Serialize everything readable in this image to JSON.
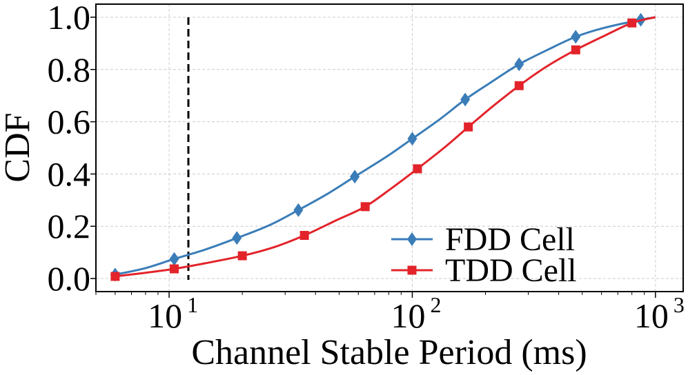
{
  "chart_data": {
    "type": "line",
    "xscale": "log",
    "xlabel": "Channel Stable Period (ms)",
    "ylabel": "CDF",
    "xlim": [
      5,
      1300
    ],
    "ylim": [
      -0.05,
      1.05
    ],
    "grid": true,
    "xticks": [
      {
        "base": "10",
        "exp": "1",
        "value": 10
      },
      {
        "base": "10",
        "exp": "2",
        "value": 100
      },
      {
        "base": "10",
        "exp": "3",
        "value": 1000
      }
    ],
    "yticks": [
      "0.0",
      "0.2",
      "0.4",
      "0.6",
      "0.8",
      "1.0"
    ],
    "threshold_line": {
      "x": 12,
      "style": "dashed",
      "color": "#000000"
    },
    "legend_position": "lower-right",
    "series": [
      {
        "name": "FDD Cell",
        "color": "#3a7db8",
        "marker": "diamond",
        "curve": [
          [
            6,
            0.015
          ],
          [
            8,
            0.04
          ],
          [
            10.5,
            0.075
          ],
          [
            14,
            0.11
          ],
          [
            19,
            0.155
          ],
          [
            26,
            0.205
          ],
          [
            34,
            0.262
          ],
          [
            45,
            0.325
          ],
          [
            58,
            0.39
          ],
          [
            78,
            0.465
          ],
          [
            100,
            0.535
          ],
          [
            130,
            0.61
          ],
          [
            165,
            0.685
          ],
          [
            210,
            0.75
          ],
          [
            275,
            0.82
          ],
          [
            360,
            0.875
          ],
          [
            470,
            0.925
          ],
          [
            620,
            0.96
          ],
          [
            870,
            0.99
          ],
          [
            1000,
            1.0
          ]
        ],
        "markers": [
          [
            6,
            0.015
          ],
          [
            10.5,
            0.075
          ],
          [
            19,
            0.155
          ],
          [
            34,
            0.262
          ],
          [
            58,
            0.39
          ],
          [
            100,
            0.535
          ],
          [
            165,
            0.685
          ],
          [
            275,
            0.82
          ],
          [
            470,
            0.925
          ],
          [
            870,
            0.99
          ]
        ]
      },
      {
        "name": "TDD Cell",
        "color": "#e3232a",
        "marker": "square",
        "curve": [
          [
            6,
            0.008
          ],
          [
            8,
            0.022
          ],
          [
            10.5,
            0.037
          ],
          [
            14,
            0.058
          ],
          [
            20,
            0.087
          ],
          [
            27,
            0.12
          ],
          [
            36,
            0.165
          ],
          [
            48,
            0.22
          ],
          [
            64,
            0.275
          ],
          [
            82,
            0.345
          ],
          [
            105,
            0.42
          ],
          [
            135,
            0.5
          ],
          [
            170,
            0.58
          ],
          [
            215,
            0.66
          ],
          [
            275,
            0.738
          ],
          [
            355,
            0.81
          ],
          [
            470,
            0.875
          ],
          [
            620,
            0.93
          ],
          [
            800,
            0.978
          ],
          [
            1000,
            1.0
          ]
        ],
        "markers": [
          [
            6,
            0.008
          ],
          [
            10.5,
            0.037
          ],
          [
            20,
            0.087
          ],
          [
            36,
            0.165
          ],
          [
            64,
            0.275
          ],
          [
            105,
            0.42
          ],
          [
            170,
            0.58
          ],
          [
            275,
            0.738
          ],
          [
            470,
            0.875
          ],
          [
            800,
            0.978
          ]
        ]
      }
    ]
  }
}
